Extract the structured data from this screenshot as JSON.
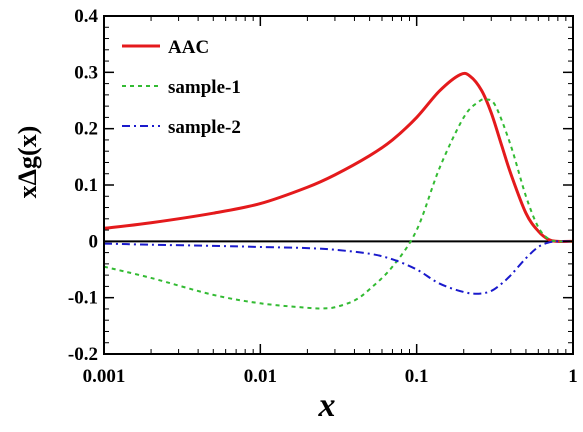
{
  "chart_data": {
    "type": "line",
    "xscale": "log",
    "xlim": [
      0.001,
      1
    ],
    "ylim": [
      -0.2,
      0.4
    ],
    "xticks": [
      0.001,
      0.01,
      0.1,
      1
    ],
    "xtick_labels": [
      "0.001",
      "0.01",
      "0.1",
      "1"
    ],
    "yticks": [
      -0.2,
      -0.1,
      0,
      0.1,
      0.2,
      0.3,
      0.4
    ],
    "ytick_labels": [
      "-0.2",
      "-0.1",
      "0",
      "0.1",
      "0.2",
      "0.3",
      "0.4"
    ],
    "xlabel": "x",
    "ylabel": "xΔg(x)",
    "zero_line": true,
    "grid": false,
    "legend_position": "top-left",
    "series": [
      {
        "name": "AAC",
        "color": "#e41a1c",
        "style": "solid",
        "x": [
          0.001,
          0.002,
          0.005,
          0.01,
          0.02,
          0.03,
          0.05,
          0.07,
          0.1,
          0.14,
          0.19,
          0.22,
          0.26,
          0.3,
          0.35,
          0.4,
          0.5,
          0.6,
          0.7,
          0.8,
          1.0
        ],
        "y": [
          0.023,
          0.033,
          0.05,
          0.067,
          0.096,
          0.118,
          0.152,
          0.18,
          0.22,
          0.267,
          0.296,
          0.293,
          0.268,
          0.228,
          0.17,
          0.12,
          0.05,
          0.018,
          0.003,
          0.0,
          0.0
        ]
      },
      {
        "name": "sample-1",
        "color": "#33bb33",
        "style": "dotted",
        "x": [
          0.001,
          0.002,
          0.005,
          0.01,
          0.02,
          0.025,
          0.03,
          0.04,
          0.05,
          0.07,
          0.1,
          0.14,
          0.2,
          0.25,
          0.28,
          0.32,
          0.4,
          0.5,
          0.6,
          0.7,
          0.8,
          1.0
        ],
        "y": [
          -0.045,
          -0.065,
          -0.095,
          -0.11,
          -0.118,
          -0.119,
          -0.117,
          -0.105,
          -0.085,
          -0.045,
          0.02,
          0.13,
          0.22,
          0.248,
          0.252,
          0.24,
          0.17,
          0.08,
          0.025,
          0.004,
          0.0,
          0.0
        ]
      },
      {
        "name": "sample-2",
        "color": "#1a1acc",
        "style": "dash-dot",
        "x": [
          0.001,
          0.002,
          0.005,
          0.01,
          0.02,
          0.03,
          0.05,
          0.07,
          0.1,
          0.14,
          0.2,
          0.25,
          0.3,
          0.35,
          0.4,
          0.5,
          0.6,
          0.7,
          0.8,
          1.0
        ],
        "y": [
          -0.004,
          -0.006,
          -0.008,
          -0.01,
          -0.012,
          -0.015,
          -0.022,
          -0.032,
          -0.05,
          -0.075,
          -0.09,
          -0.093,
          -0.088,
          -0.075,
          -0.06,
          -0.03,
          -0.01,
          -0.002,
          0.0,
          0.0
        ]
      }
    ]
  }
}
